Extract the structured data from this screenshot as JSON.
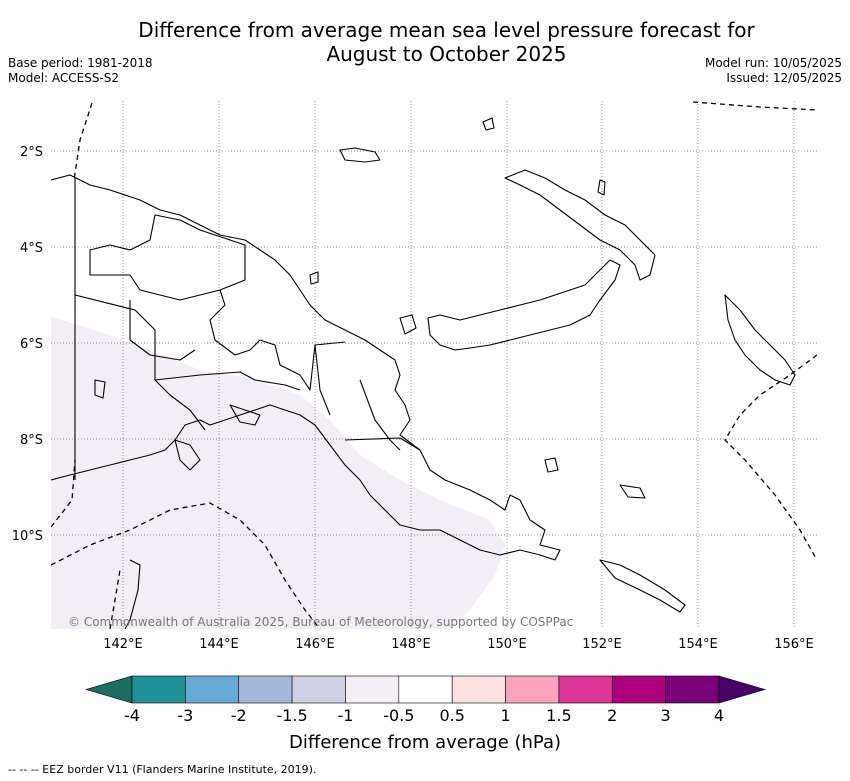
{
  "title": {
    "line1": "Difference from average mean sea level pressure forecast for",
    "line2": "August to October 2025"
  },
  "meta": {
    "base_period": "Base period: 1981-2018",
    "model": "Model: ACCESS-S2",
    "model_run": "Model run: 10/05/2025",
    "issued": "Issued: 12/05/2025"
  },
  "map": {
    "lon_ticks": [
      "142°E",
      "144°E",
      "146°E",
      "148°E",
      "150°E",
      "152°E",
      "154°E",
      "156°E"
    ],
    "lat_ticks": [
      "2°S",
      "4°S",
      "6°S",
      "8°S",
      "10°S"
    ],
    "lon_range": [
      140.5,
      156.5
    ],
    "lat_range": [
      -11.9,
      -0.9
    ],
    "copyright": "© Commonwealth of Australia 2025, Bureau of Meteorology, supported by COSPPac",
    "shaded_category": "-1 to -0.5"
  },
  "colorbar": {
    "label": "Difference from average (hPa)",
    "ticks": [
      "-4",
      "-3",
      "-2",
      "-1.5",
      "-1",
      "-0.5",
      "0.5",
      "1",
      "1.5",
      "2",
      "3",
      "4"
    ],
    "colors": [
      "#1a6e64",
      "#1e9197",
      "#66aad4",
      "#a6b8dc",
      "#cfcfe6",
      "#f3eef5",
      "#ffffff",
      "#fde0e0",
      "#f9a4bc",
      "#dd3497",
      "#ae017e",
      "#7a0177",
      "#49006a"
    ]
  },
  "footer": "-- -- -- EEZ border V11 (Flanders Marine Institute, 2019)."
}
